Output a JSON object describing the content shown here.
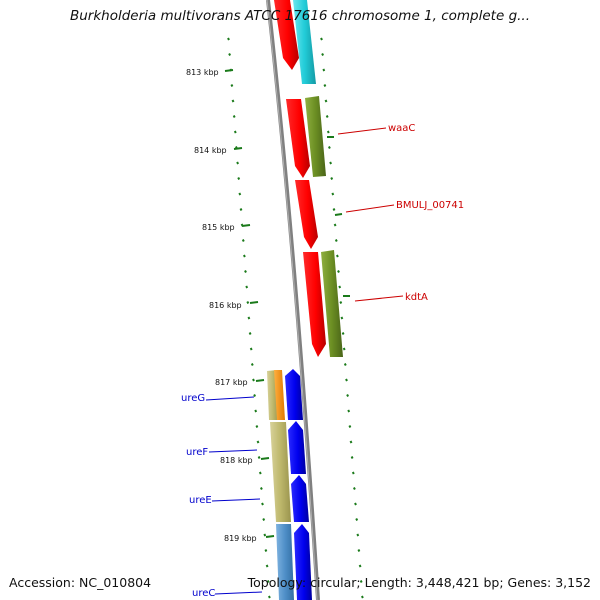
{
  "title": "Burkholderia multivorans ATCC 17616 chromosome 1, complete g...",
  "accession_text": "Accession: NC_010804",
  "summary_text": "Topology: circular; Length: 3,448,421 bp; Genes: 3,152",
  "scale_ticks": [
    "813 kbp",
    "814 kbp",
    "815 kbp",
    "816 kbp",
    "817 kbp",
    "818 kbp",
    "819 kbp"
  ],
  "gene_labels": [
    {
      "name": "waaC",
      "strand": "forward",
      "color": "#cc0000"
    },
    {
      "name": "BMULJ_00741",
      "strand": "forward",
      "color": "#cc0000"
    },
    {
      "name": "kdtA",
      "strand": "forward",
      "color": "#cc0000"
    },
    {
      "name": "ureG",
      "strand": "reverse",
      "color": "#0000cc"
    },
    {
      "name": "ureF",
      "strand": "reverse",
      "color": "#0000cc"
    },
    {
      "name": "ureE",
      "strand": "reverse",
      "color": "#0000cc"
    },
    {
      "name": "ureC",
      "strand": "reverse",
      "color": "#0000cc"
    }
  ],
  "colors": {
    "forward_cds": "#ff0000",
    "reverse_cds": "#0000ee",
    "cyan_feature": "#22ccd8",
    "olive_feature": "#6b8e23",
    "khaki_feature": "#bdb76b",
    "orange_feature": "#ff8c00",
    "steelblue_feature": "#4f8fc8",
    "backbone": "#808080",
    "tick": "#1a7a1a"
  }
}
